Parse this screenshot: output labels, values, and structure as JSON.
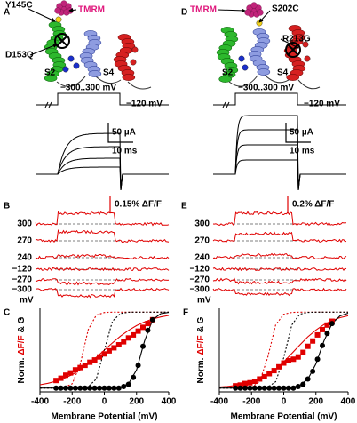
{
  "panels_top": [
    {
      "label": "A",
      "dye": "TMRM",
      "cysteine": "Y145C",
      "mutation": "D153Q",
      "segments": [
        "S2",
        "S4"
      ],
      "voltage_steps": "−300..300 mV",
      "holding": "−120 mV",
      "current_scale": "50 µA",
      "time_scale": "10 ms"
    },
    {
      "label": "D",
      "dye": "TMRM",
      "cysteine": "S202C",
      "mutation": "R213G",
      "segments": [
        "S2",
        "S4"
      ],
      "voltage_steps": "−300..300 mV",
      "holding": "−120 mV",
      "current_scale": "50 µA",
      "time_scale": "10 ms"
    }
  ],
  "panels_traces": [
    {
      "label": "B",
      "scale": "0.15% ΔF/F",
      "voltages": [
        "300",
        "270",
        "240",
        "−120",
        "−270",
        "−300"
      ],
      "unit": "mV"
    },
    {
      "label": "E",
      "scale": "0.2% ΔF/F",
      "voltages": [
        "300",
        "270",
        "240",
        "−120",
        "−270",
        "−300"
      ],
      "unit": "mV"
    }
  ],
  "chart_data": [
    {
      "type": "scatter",
      "label": "C",
      "ylabel": [
        {
          "text": "Norm.",
          "color": "#000000"
        },
        {
          "text": "ΔF/F",
          "color": "#e00000"
        },
        {
          "text": "& G",
          "color": "#000000"
        }
      ],
      "xlabel": "Membrane Potential (mV)",
      "xlim": [
        -400,
        400
      ],
      "xticks": [
        -400,
        -200,
        0,
        200,
        400
      ],
      "ylim": [
        -0.05,
        1.05
      ],
      "series": [
        {
          "color": "#e00000",
          "marker": "square",
          "x": [
            -300,
            -270,
            -240,
            -210,
            -180,
            -150,
            -120,
            -90,
            -60,
            -30,
            0,
            30,
            60,
            90,
            120,
            150,
            180,
            210,
            240,
            270,
            300
          ],
          "values": [
            0.1,
            0.13,
            0.17,
            0.2,
            0.24,
            0.27,
            0.3,
            0.34,
            0.37,
            0.41,
            0.45,
            0.49,
            0.53,
            0.57,
            0.61,
            0.66,
            0.7,
            0.75,
            0.8,
            0.85,
            0.9
          ]
        },
        {
          "color": "#000000",
          "marker": "circle",
          "x": [
            -300,
            -270,
            -240,
            -210,
            -180,
            -150,
            -120,
            -90,
            -60,
            -30,
            0,
            30,
            60,
            90,
            120,
            150,
            180,
            210,
            240,
            270,
            300
          ],
          "values": [
            0,
            0,
            0,
            0,
            0,
            0,
            0,
            0,
            0,
            0,
            0,
            0,
            0,
            0,
            0.02,
            0.05,
            0.14,
            0.3,
            0.55,
            0.76,
            0.9
          ]
        },
        {
          "color": "#e00000",
          "style": "solid",
          "x": [
            -400,
            -350,
            -300,
            -250,
            -200,
            -150,
            -100,
            -50,
            0,
            50,
            100,
            150,
            200,
            250,
            300,
            350,
            400
          ],
          "values": [
            0.044,
            0.063,
            0.09,
            0.128,
            0.177,
            0.24,
            0.316,
            0.405,
            0.5,
            0.595,
            0.684,
            0.76,
            0.823,
            0.872,
            0.91,
            0.937,
            0.956
          ]
        },
        {
          "color": "#e00000",
          "style": "dashed",
          "x": [
            -400,
            -350,
            -300,
            -250,
            -200,
            -150,
            -100,
            -50,
            0,
            50,
            100,
            150,
            200,
            250,
            300,
            350,
            400
          ],
          "values": [
            0,
            0,
            0.001,
            0.008,
            0.057,
            0.31,
            0.77,
            0.96,
            0.995,
            1,
            1,
            1,
            1,
            1,
            1,
            1,
            1
          ]
        },
        {
          "color": "#000000",
          "style": "dashed",
          "x": [
            -400,
            -350,
            -300,
            -250,
            -200,
            -150,
            -100,
            -50,
            0,
            50,
            100,
            150,
            200,
            250,
            300,
            350,
            400
          ],
          "values": [
            0,
            0,
            0,
            0,
            0,
            0.002,
            0.018,
            0.12,
            0.5,
            0.88,
            0.982,
            0.998,
            1,
            1,
            1,
            1,
            1
          ]
        },
        {
          "color": "#000000",
          "style": "solid",
          "x": [
            -400,
            -350,
            -300,
            -250,
            -200,
            -150,
            -100,
            -50,
            0,
            50,
            100,
            150,
            200,
            250,
            300,
            350,
            400
          ],
          "values": [
            0,
            0,
            0,
            0,
            0,
            0,
            0,
            0,
            0,
            0.002,
            0.011,
            0.056,
            0.24,
            0.62,
            0.9,
            0.98,
            0.996
          ]
        }
      ]
    },
    {
      "type": "scatter",
      "label": "F",
      "ylabel": [
        {
          "text": "Norm.",
          "color": "#000000"
        },
        {
          "text": "ΔF/F",
          "color": "#e00000"
        },
        {
          "text": "& G",
          "color": "#000000"
        }
      ],
      "xlabel": "Membrane Potential (mV)",
      "xlim": [
        -400,
        400
      ],
      "xticks": [
        -400,
        -200,
        0,
        200,
        400
      ],
      "ylim": [
        -0.05,
        1.05
      ],
      "series": [
        {
          "color": "#e00000",
          "marker": "square",
          "x": [
            -300,
            -270,
            -240,
            -210,
            -180,
            -150,
            -120,
            -90,
            -60,
            -30,
            0,
            30,
            60,
            90,
            120,
            150,
            180,
            210,
            240,
            270,
            300
          ],
          "values": [
            0.03,
            0.04,
            0.06,
            0.07,
            0.09,
            0.12,
            0.15,
            0.19,
            0.23,
            0.28,
            0.33,
            0.36,
            0.38,
            0.41,
            0.47,
            0.55,
            0.62,
            0.7,
            0.77,
            0.83,
            0.88
          ]
        },
        {
          "color": "#000000",
          "marker": "circle",
          "x": [
            -300,
            -270,
            -240,
            -210,
            -180,
            -150,
            -120,
            -90,
            -60,
            -30,
            0,
            30,
            60,
            90,
            120,
            150,
            180,
            210,
            240,
            270,
            300
          ],
          "values": [
            0,
            0,
            0,
            0,
            0,
            0,
            0,
            0,
            0,
            0,
            0,
            0,
            0,
            0.02,
            0.05,
            0.12,
            0.22,
            0.38,
            0.56,
            0.72,
            0.85
          ]
        },
        {
          "color": "#e00000",
          "style": "solid",
          "x": [
            -400,
            -350,
            -300,
            -250,
            -200,
            -150,
            -100,
            -50,
            0,
            50,
            100,
            150,
            200,
            250,
            300,
            350,
            400
          ],
          "values": [
            0.014,
            0.021,
            0.034,
            0.052,
            0.079,
            0.119,
            0.176,
            0.25,
            0.346,
            0.455,
            0.568,
            0.676,
            0.765,
            0.837,
            0.89,
            0.927,
            0.952
          ]
        },
        {
          "color": "#e00000",
          "style": "dashed",
          "x": [
            -400,
            -350,
            -300,
            -250,
            -200,
            -150,
            -100,
            -50,
            0,
            50,
            100,
            150,
            200,
            250,
            300,
            350,
            400
          ],
          "values": [
            0,
            0,
            0,
            0.002,
            0.012,
            0.083,
            0.4,
            0.832,
            0.973,
            0.996,
            1,
            1,
            1,
            1,
            1,
            1,
            1
          ]
        },
        {
          "color": "#000000",
          "style": "dashed",
          "x": [
            -400,
            -350,
            -300,
            -250,
            -200,
            -150,
            -100,
            -50,
            0,
            50,
            100,
            150,
            200,
            250,
            300,
            350,
            400
          ],
          "values": [
            0,
            0,
            0,
            0,
            0,
            0.002,
            0.012,
            0.083,
            0.4,
            0.832,
            0.973,
            0.996,
            1,
            1,
            1,
            1,
            1
          ]
        },
        {
          "color": "#000000",
          "style": "solid",
          "x": [
            -400,
            -350,
            -300,
            -250,
            -200,
            -150,
            -100,
            -50,
            0,
            50,
            100,
            150,
            200,
            250,
            300,
            350,
            400
          ],
          "values": [
            0,
            0,
            0,
            0,
            0,
            0,
            0,
            0,
            0.003,
            0.011,
            0.037,
            0.119,
            0.32,
            0.62,
            0.85,
            0.95,
            0.986
          ]
        }
      ]
    }
  ]
}
